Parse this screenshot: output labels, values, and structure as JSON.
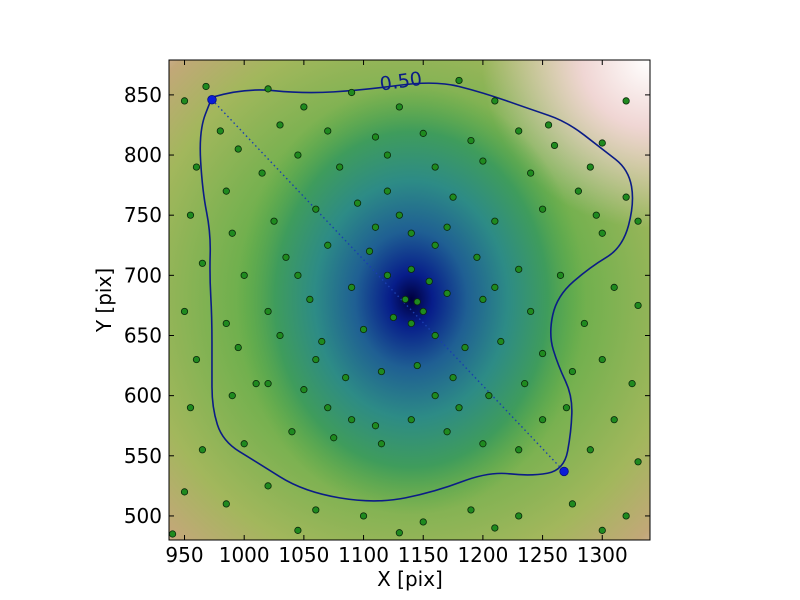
{
  "chart_data": {
    "type": "scatter",
    "title": "",
    "xlabel": "X [pix]",
    "ylabel": "Y [pix]",
    "xlim": [
      937,
      1340
    ],
    "ylim": [
      480,
      879
    ],
    "x_ticks": [
      950,
      1000,
      1050,
      1100,
      1150,
      1200,
      1250,
      1300
    ],
    "y_ticks": [
      500,
      550,
      600,
      650,
      700,
      750,
      800,
      850
    ],
    "background": "density heatmap (gist_earth-like colormap), darkest near center (1140, 680)",
    "density_peak": [
      1140,
      680
    ],
    "contour": {
      "level_label": "0.50",
      "color": "#0b1c86",
      "path": [
        [
          973,
          848
        ],
        [
          1000,
          856
        ],
        [
          1050,
          851
        ],
        [
          1100,
          854
        ],
        [
          1160,
          862
        ],
        [
          1200,
          852
        ],
        [
          1240,
          838
        ],
        [
          1270,
          828
        ],
        [
          1300,
          805
        ],
        [
          1322,
          788
        ],
        [
          1327,
          760
        ],
        [
          1317,
          723
        ],
        [
          1290,
          707
        ],
        [
          1262,
          683
        ],
        [
          1255,
          651
        ],
        [
          1263,
          625
        ],
        [
          1275,
          600
        ],
        [
          1274,
          570
        ],
        [
          1268,
          538
        ],
        [
          1240,
          533
        ],
        [
          1205,
          537
        ],
        [
          1160,
          520
        ],
        [
          1110,
          510
        ],
        [
          1050,
          520
        ],
        [
          1010,
          545
        ],
        [
          982,
          562
        ],
        [
          973,
          590
        ],
        [
          973,
          625
        ],
        [
          973,
          665
        ],
        [
          971,
          700
        ],
        [
          972,
          735
        ],
        [
          965,
          770
        ],
        [
          962,
          820
        ],
        [
          973,
          848
        ]
      ]
    },
    "endpoints": [
      [
        973,
        846
      ],
      [
        1268,
        537
      ]
    ],
    "dotted_line": [
      [
        973,
        846
      ],
      [
        1268,
        537
      ]
    ],
    "points": [
      [
        968,
        857
      ],
      [
        1020,
        855
      ],
      [
        1050,
        840
      ],
      [
        1090,
        852
      ],
      [
        1130,
        840
      ],
      [
        1180,
        862
      ],
      [
        1210,
        845
      ],
      [
        1255,
        825
      ],
      [
        1300,
        810
      ],
      [
        1320,
        845
      ],
      [
        950,
        845
      ],
      [
        980,
        820
      ],
      [
        995,
        805
      ],
      [
        1030,
        825
      ],
      [
        1070,
        820
      ],
      [
        1110,
        815
      ],
      [
        1150,
        818
      ],
      [
        1190,
        812
      ],
      [
        1230,
        820
      ],
      [
        1260,
        808
      ],
      [
        1290,
        790
      ],
      [
        960,
        790
      ],
      [
        985,
        770
      ],
      [
        1015,
        785
      ],
      [
        1045,
        800
      ],
      [
        1080,
        790
      ],
      [
        1120,
        800
      ],
      [
        1160,
        790
      ],
      [
        1200,
        795
      ],
      [
        1240,
        785
      ],
      [
        1280,
        770
      ],
      [
        1320,
        765
      ],
      [
        955,
        750
      ],
      [
        990,
        735
      ],
      [
        1025,
        745
      ],
      [
        1060,
        755
      ],
      [
        1095,
        760
      ],
      [
        1130,
        750
      ],
      [
        1175,
        765
      ],
      [
        1210,
        745
      ],
      [
        1250,
        755
      ],
      [
        1300,
        735
      ],
      [
        1330,
        745
      ],
      [
        965,
        710
      ],
      [
        1000,
        700
      ],
      [
        1035,
        715
      ],
      [
        1070,
        725
      ],
      [
        1105,
        720
      ],
      [
        1140,
        735
      ],
      [
        1160,
        725
      ],
      [
        1195,
        715
      ],
      [
        1230,
        705
      ],
      [
        1265,
        700
      ],
      [
        1310,
        690
      ],
      [
        950,
        670
      ],
      [
        985,
        660
      ],
      [
        1020,
        670
      ],
      [
        1055,
        680
      ],
      [
        1090,
        690
      ],
      [
        1120,
        700
      ],
      [
        1140,
        705
      ],
      [
        1155,
        695
      ],
      [
        1170,
        685
      ],
      [
        1200,
        680
      ],
      [
        1240,
        670
      ],
      [
        1285,
        660
      ],
      [
        1330,
        675
      ],
      [
        960,
        630
      ],
      [
        995,
        640
      ],
      [
        1030,
        650
      ],
      [
        1065,
        645
      ],
      [
        1100,
        655
      ],
      [
        1125,
        665
      ],
      [
        1135,
        680
      ],
      [
        1145,
        678
      ],
      [
        1150,
        670
      ],
      [
        1140,
        660
      ],
      [
        1160,
        650
      ],
      [
        1185,
        640
      ],
      [
        1215,
        645
      ],
      [
        1250,
        635
      ],
      [
        1300,
        630
      ],
      [
        1325,
        610
      ],
      [
        955,
        590
      ],
      [
        990,
        600
      ],
      [
        1020,
        610
      ],
      [
        1050,
        605
      ],
      [
        1085,
        615
      ],
      [
        1115,
        620
      ],
      [
        1145,
        625
      ],
      [
        1175,
        615
      ],
      [
        1205,
        600
      ],
      [
        1235,
        610
      ],
      [
        1270,
        590
      ],
      [
        1310,
        580
      ],
      [
        965,
        555
      ],
      [
        1000,
        560
      ],
      [
        1040,
        570
      ],
      [
        1075,
        565
      ],
      [
        1110,
        575
      ],
      [
        1140,
        580
      ],
      [
        1170,
        570
      ],
      [
        1200,
        560
      ],
      [
        1230,
        555
      ],
      [
        1290,
        555
      ],
      [
        1330,
        545
      ],
      [
        950,
        520
      ],
      [
        985,
        510
      ],
      [
        1020,
        525
      ],
      [
        1060,
        505
      ],
      [
        1100,
        500
      ],
      [
        1150,
        495
      ],
      [
        1190,
        505
      ],
      [
        1230,
        500
      ],
      [
        1275,
        510
      ],
      [
        1320,
        500
      ],
      [
        940,
        485
      ],
      [
        1045,
        488
      ],
      [
        1130,
        486
      ],
      [
        1210,
        490
      ],
      [
        1300,
        488
      ],
      [
        1115,
        560
      ],
      [
        1160,
        600
      ],
      [
        1090,
        580
      ],
      [
        1180,
        590
      ],
      [
        1060,
        630
      ],
      [
        1210,
        690
      ],
      [
        1110,
        740
      ],
      [
        1045,
        700
      ],
      [
        1010,
        610
      ],
      [
        1250,
        580
      ],
      [
        1275,
        620
      ],
      [
        1295,
        750
      ],
      [
        1120,
        770
      ],
      [
        1070,
        590
      ],
      [
        1170,
        740
      ]
    ]
  }
}
